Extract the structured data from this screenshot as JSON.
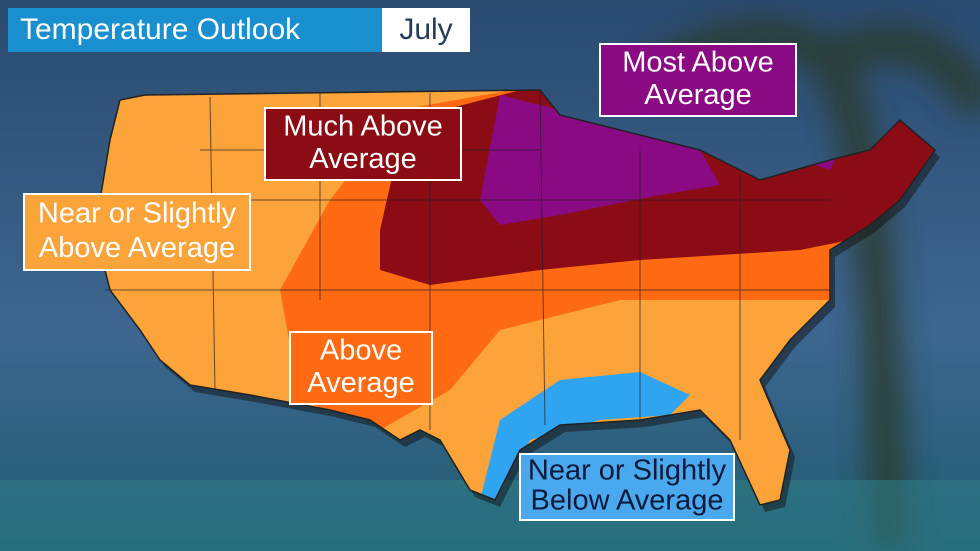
{
  "header": {
    "title": "Temperature Outlook",
    "month": "July"
  },
  "labels": [
    {
      "lines": [
        "Most Above",
        "Average"
      ]
    },
    {
      "lines": [
        "Much Above",
        "Average"
      ]
    },
    {
      "lines": [
        "Near or Slightly",
        "Above Average"
      ]
    },
    {
      "lines": [
        "Above",
        "Average"
      ]
    },
    {
      "lines": [
        "Near or Slightly",
        "Below Average"
      ]
    }
  ]
}
